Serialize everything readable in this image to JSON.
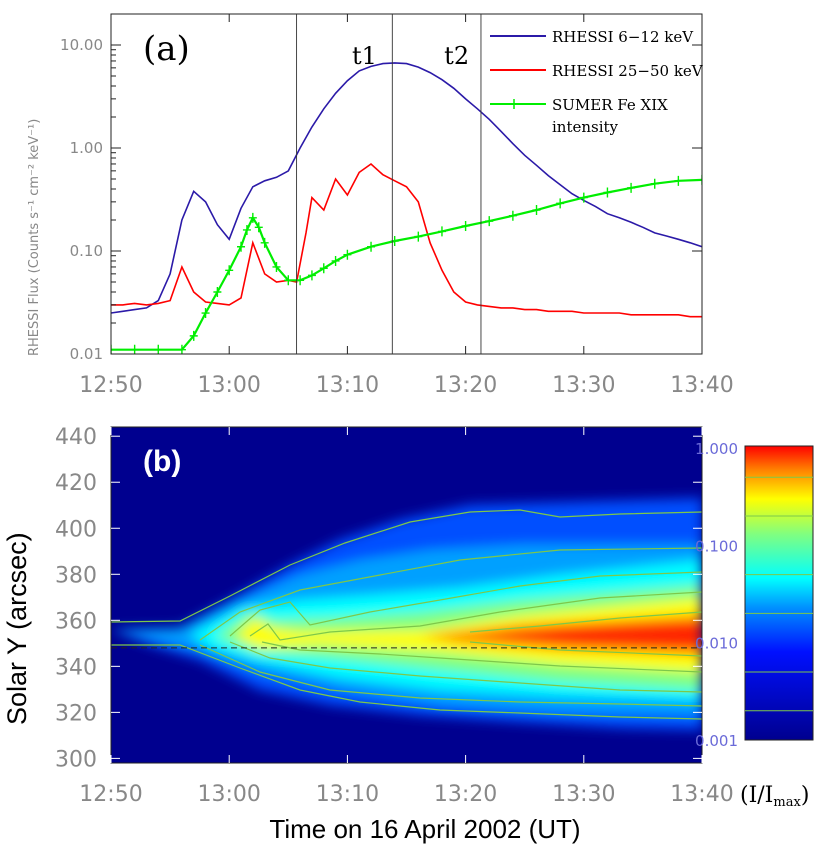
{
  "chart_data": [
    {
      "panel_label": "(a)",
      "type": "line",
      "ylabel": "RHESSI Flux (Counts s⁻¹ cm⁻² keV⁻¹)",
      "y_scale": "log",
      "ylim": [
        0.01,
        20
      ],
      "xlim": [
        "12:50",
        "13:40"
      ],
      "x_ticks": [
        "12:50",
        "13:00",
        "13:10",
        "13:20",
        "13:30",
        "13:40"
      ],
      "y_ticks": [
        "0.01",
        "0.10",
        "1.00",
        "10.00"
      ],
      "x_tick_minutes": [
        0,
        10,
        20,
        30,
        40,
        50
      ],
      "y_tick_values": [
        0.01,
        0.1,
        1,
        10
      ],
      "markers": [
        {
          "label": "",
          "time": "13:05.7"
        },
        {
          "label": "t1",
          "time": "13:13.8"
        },
        {
          "label": "t2",
          "time": "13:21.3"
        }
      ],
      "marker_minutes": [
        15.7,
        23.8,
        31.3
      ],
      "legend_placement": "top-right",
      "legend": [
        {
          "label": "RHESSI 6−12 keV",
          "color": "#2b1aa8"
        },
        {
          "label": "RHESSI 25−50 keV",
          "color": "#ff0000"
        },
        {
          "label": "SUMER Fe XIX",
          "label2": "intensity",
          "color": "#00ee00"
        }
      ],
      "series": [
        {
          "name": "RHESSI 6−12 keV",
          "color": "#2b1aa8",
          "x": [
            0,
            1,
            2,
            3,
            4,
            5,
            6,
            7,
            8,
            9,
            10,
            11,
            12,
            13,
            14,
            15,
            16,
            17,
            18,
            19,
            20,
            21,
            22,
            23,
            24,
            25,
            26,
            27,
            28,
            29,
            30,
            31,
            32,
            33,
            34,
            35,
            36,
            37,
            38,
            39,
            40,
            41,
            42,
            43,
            44,
            45,
            46,
            47,
            48,
            49,
            50
          ],
          "y": [
            0.025,
            0.026,
            0.027,
            0.028,
            0.033,
            0.06,
            0.2,
            0.38,
            0.3,
            0.18,
            0.13,
            0.26,
            0.42,
            0.48,
            0.52,
            0.6,
            1.0,
            1.6,
            2.4,
            3.4,
            4.5,
            5.6,
            6.2,
            6.6,
            6.7,
            6.6,
            6.1,
            5.4,
            4.6,
            3.8,
            3.0,
            2.4,
            1.9,
            1.45,
            1.1,
            0.85,
            0.68,
            0.54,
            0.44,
            0.36,
            0.31,
            0.27,
            0.23,
            0.21,
            0.19,
            0.17,
            0.15,
            0.14,
            0.13,
            0.12,
            0.11
          ]
        },
        {
          "name": "RHESSI 25−50 keV",
          "color": "#ff0000",
          "x": [
            0,
            1,
            2,
            3,
            4,
            5,
            6,
            7,
            8,
            9,
            10,
            11,
            12,
            13,
            14,
            15,
            15.7,
            16.5,
            17,
            18,
            19,
            20,
            21,
            22,
            23,
            24,
            25,
            26,
            27,
            28,
            29,
            30,
            31,
            32,
            33,
            34,
            35,
            36,
            37,
            38,
            39,
            40,
            41,
            42,
            43,
            44,
            45,
            46,
            47,
            48,
            49,
            50
          ],
          "y": [
            0.03,
            0.03,
            0.031,
            0.03,
            0.031,
            0.033,
            0.07,
            0.04,
            0.032,
            0.031,
            0.03,
            0.035,
            0.12,
            0.06,
            0.05,
            0.052,
            0.05,
            0.15,
            0.33,
            0.25,
            0.5,
            0.35,
            0.58,
            0.7,
            0.55,
            0.48,
            0.42,
            0.3,
            0.12,
            0.065,
            0.04,
            0.032,
            0.03,
            0.029,
            0.028,
            0.028,
            0.027,
            0.027,
            0.026,
            0.026,
            0.026,
            0.025,
            0.025,
            0.025,
            0.025,
            0.024,
            0.024,
            0.024,
            0.024,
            0.024,
            0.023,
            0.023
          ]
        },
        {
          "name": "SUMER Fe XIX intensity",
          "color": "#00ee00",
          "x": [
            0,
            2,
            4,
            6,
            7,
            8,
            9,
            10,
            11,
            11.5,
            12,
            12.5,
            13,
            14,
            15,
            16,
            17,
            18,
            19,
            20,
            22,
            24,
            26,
            28,
            30,
            32,
            34,
            36,
            38,
            40,
            42,
            44,
            46,
            48,
            50
          ],
          "y": [
            0.011,
            0.011,
            0.011,
            0.011,
            0.015,
            0.025,
            0.04,
            0.065,
            0.11,
            0.16,
            0.21,
            0.17,
            0.12,
            0.07,
            0.052,
            0.052,
            0.058,
            0.068,
            0.08,
            0.092,
            0.11,
            0.125,
            0.138,
            0.155,
            0.175,
            0.195,
            0.22,
            0.25,
            0.29,
            0.33,
            0.37,
            0.41,
            0.45,
            0.48,
            0.49
          ]
        }
      ]
    },
    {
      "panel_label": "(b)",
      "type": "heatmap",
      "ylabel": "Solar Y (arcsec)",
      "xlabel": "Time on 16 April 2002  (UT)",
      "xlim": [
        "12:50",
        "13:40"
      ],
      "ylim": [
        298,
        444
      ],
      "x_ticks": [
        "12:50",
        "13:00",
        "13:10",
        "13:20",
        "13:30",
        "13:40"
      ],
      "x_tick_minutes": [
        0,
        10,
        20,
        30,
        40,
        50
      ],
      "y_ticks": [
        300,
        320,
        340,
        360,
        380,
        400,
        420,
        440
      ],
      "dashed_line_y": 348,
      "colorbar": {
        "scale": "log",
        "ticks": [
          "1.000",
          "0.100",
          "0.010",
          "0.001"
        ],
        "tick_values": [
          1,
          0.1,
          0.01,
          0.001
        ],
        "unit": "(I/I",
        "unit_sub": "max",
        "unit_close": ")"
      },
      "colormap": [
        "#00008f",
        "#0000ff",
        "#0080ff",
        "#00ffff",
        "#80ff80",
        "#ffff00",
        "#ff8000",
        "#ff0000",
        "#800000"
      ],
      "contour_color": "#7dc84a"
    }
  ]
}
